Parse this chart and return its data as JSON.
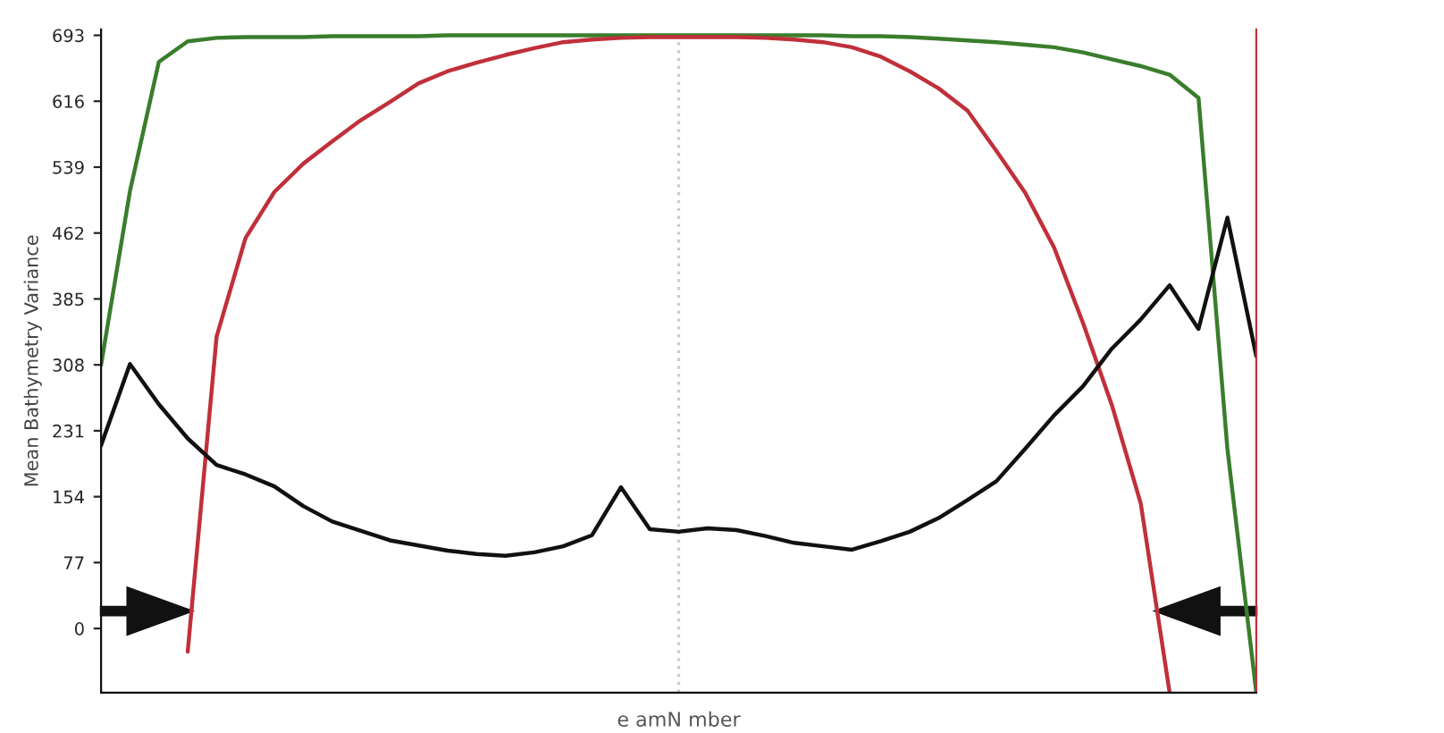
{
  "chart_data": {
    "type": "line",
    "xlabel": "e amN mber",
    "ylabel": "Mean Bathymetry Variance",
    "tick_labels": "y",
    "categories": [
      null,
      null,
      null,
      null,
      null,
      null,
      null,
      null,
      null,
      null,
      null,
      null,
      null,
      null,
      null,
      null,
      null,
      null,
      null,
      null,
      null,
      null,
      null,
      null,
      null,
      null,
      null,
      null,
      null,
      null,
      null,
      null,
      null,
      null,
      null,
      null,
      null,
      null,
      null,
      null,
      null
    ],
    "ylim": [
      -75,
      700
    ],
    "yticks": [
      0,
      77,
      154,
      231,
      308,
      385,
      462,
      539,
      616,
      693
    ],
    "grid": false,
    "legend": false,
    "marker": "none",
    "line_style": "solid",
    "series": [
      {
        "color": "#3a7d2c",
        "values": [
          308,
          511,
          662,
          686,
          690,
          691,
          691,
          691,
          692,
          692,
          692,
          692,
          693,
          693,
          693,
          693,
          693,
          693,
          693,
          693,
          693,
          693,
          693,
          693,
          693,
          693,
          692,
          692,
          691,
          689,
          687,
          685,
          682,
          679,
          673,
          665,
          657,
          647,
          620,
          210,
          -75
        ]
      },
      {
        "color": "#c0303a",
        "values": [
          null,
          null,
          null,
          -27,
          341,
          456,
          510,
          543,
          569,
          594,
          615,
          637,
          651,
          661,
          670,
          678,
          685,
          688,
          690,
          691,
          691,
          691,
          691,
          690,
          688,
          685,
          679,
          668,
          651,
          631,
          605,
          558,
          509,
          445,
          357,
          261,
          146,
          -75,
          null,
          null,
          null
        ]
      },
      {
        "color": "#111111",
        "values": [
          214,
          309,
          262,
          222,
          191,
          180,
          166,
          143,
          125,
          114,
          103,
          97,
          91,
          87,
          85,
          89,
          96,
          109,
          165,
          116,
          113,
          117,
          115,
          108,
          100,
          96,
          92,
          102,
          113,
          129,
          150,
          172,
          210,
          249,
          283,
          327,
          361,
          401,
          350,
          480,
          318
        ]
      }
    ]
  }
}
